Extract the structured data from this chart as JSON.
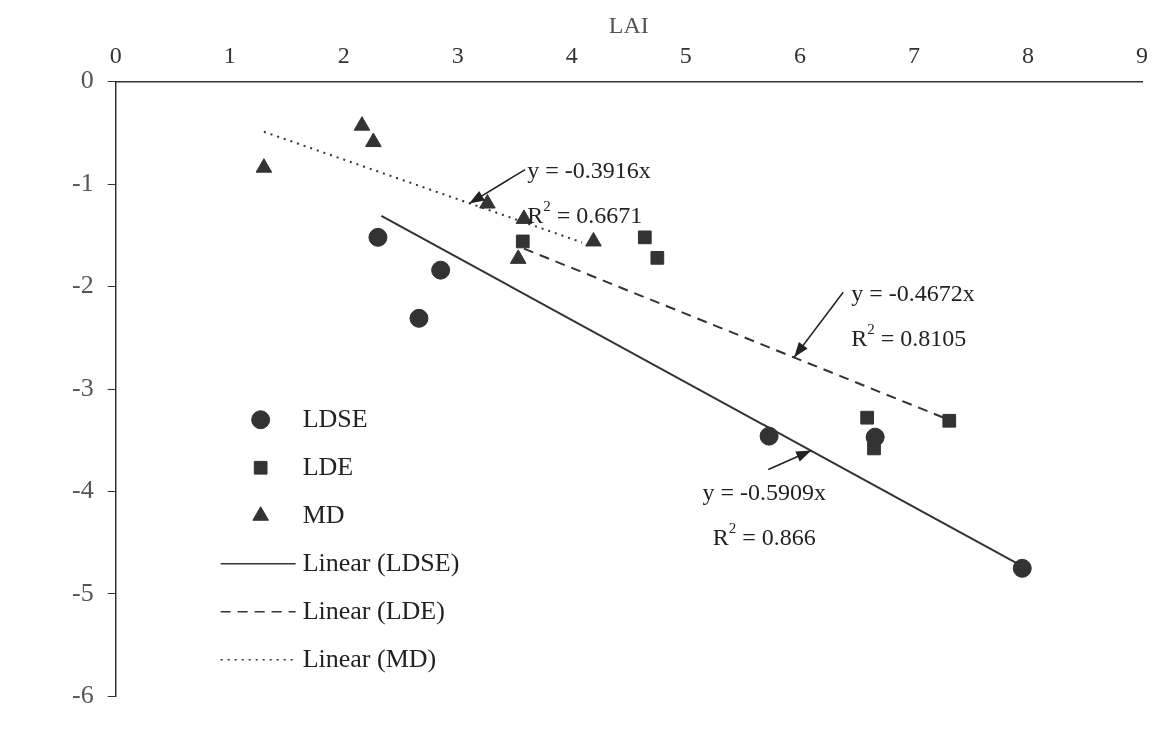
{
  "chart_data": {
    "type": "scatter",
    "xlabel": "LAI",
    "xlim": [
      0,
      9
    ],
    "xticks": [
      0,
      1,
      2,
      3,
      4,
      5,
      6,
      7,
      8,
      9
    ],
    "ylim": [
      -6,
      0
    ],
    "yticks": [
      -6,
      -5,
      -4,
      -3,
      -2,
      -1,
      0
    ],
    "grid": false,
    "legend": "left",
    "series": [
      {
        "name": "LDSE",
        "marker": "circle",
        "color": "#333333",
        "x": [
          2.3,
          2.85,
          2.66,
          5.73,
          6.66,
          7.95
        ],
        "values": [
          -1.52,
          -1.84,
          -2.31,
          -3.46,
          -3.47,
          -4.75
        ]
      },
      {
        "name": "LDE",
        "marker": "square",
        "color": "#333333",
        "x": [
          3.57,
          4.64,
          4.75,
          6.59,
          6.65,
          7.31
        ],
        "values": [
          -1.56,
          -1.52,
          -1.72,
          -3.28,
          -3.58,
          -3.31
        ]
      },
      {
        "name": "MD",
        "marker": "triangle",
        "color": "#333333",
        "x": [
          1.3,
          2.16,
          2.26,
          3.26,
          3.58,
          3.53,
          4.19
        ],
        "values": [
          -0.84,
          -0.43,
          -0.59,
          -1.19,
          -1.34,
          -1.73,
          -1.56
        ]
      },
      {
        "name": "Linear (LDSE)",
        "type": "line",
        "marker": "none",
        "line_style": "solid",
        "color": "#333333",
        "x": [
          2.33,
          7.95
        ],
        "values": [
          -1.31,
          -4.73
        ]
      },
      {
        "name": "Linear (LDE)",
        "type": "line",
        "marker": "none",
        "line_style": "dashed",
        "color": "#333333",
        "x": [
          3.58,
          7.35
        ],
        "values": [
          -1.63,
          -3.32
        ]
      },
      {
        "name": "Linear (MD)",
        "type": "line",
        "marker": "none",
        "line_style": "dotted",
        "color": "#333333",
        "x": [
          1.3,
          4.09
        ],
        "values": [
          -0.49,
          -1.57
        ]
      }
    ],
    "annotations": [
      {
        "text": "y = -0.3916x",
        "x": 3.1,
        "y": -1.19
      },
      "R$^{2}$ = 0.6671",
      {
        "text": "y = -0.4672x",
        "x": 5.95,
        "y": -2.69
      },
      "R$^{2}$ = 0.8105",
      {
        "text": "y = -0.5909x",
        "x": 6.1,
        "y": -3.6
      },
      "R$^{2}$ = 0.866"
    ]
  }
}
